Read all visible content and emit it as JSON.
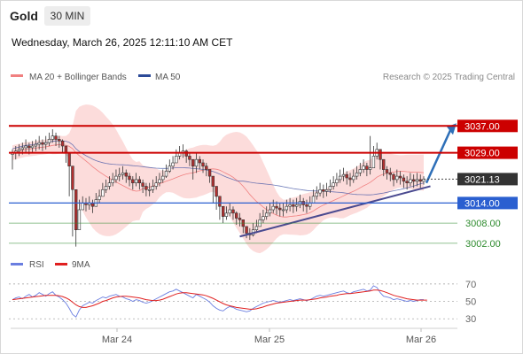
{
  "header": {
    "title": "Gold",
    "timeframe": "30 MIN"
  },
  "timestamp": "Wednesday, March 26, 2025 12:11:10 AM CET",
  "legend": {
    "bollinger": "MA 20 + Bollinger Bands",
    "ma50": "MA 50",
    "source": "Research © 2025 Trading Central"
  },
  "colors": {
    "up_candle": "#ffffff",
    "down_candle": "#b33030",
    "bollinger_fill": "#fbd0cf",
    "ma20": "#f08080",
    "ma50": "#4a5aa8",
    "resistance": "#cc0000",
    "support": "#2a5fd0",
    "target": "#2e8b2e",
    "price_badge": "#333333",
    "trend_arrow": "#2e6fb8",
    "trendline": "#4a4a90",
    "rsi": "#6a7ee0",
    "rsi_ma": "#e02020"
  },
  "chart_data": [
    {
      "type": "candlestick",
      "instrument": "Gold",
      "timeframe": "30 MIN",
      "x_ticks": [
        "Mar 24",
        "Mar 25",
        "Mar 26"
      ],
      "ylim": [
        2998,
        3045
      ],
      "grid": false,
      "legend_position": "top-left",
      "levels": [
        {
          "price": 3037.0,
          "label": "3037.00",
          "kind": "resistance"
        },
        {
          "price": 3029.0,
          "label": "3029.00",
          "kind": "resistance"
        },
        {
          "price": 3021.13,
          "label": "3021.13",
          "kind": "current"
        },
        {
          "price": 3014.0,
          "label": "3014.00",
          "kind": "support"
        },
        {
          "price": 3008.0,
          "label": "3008.00",
          "kind": "target"
        },
        {
          "price": 3002.0,
          "label": "3002.00",
          "kind": "target"
        }
      ],
      "close": [
        3029,
        3029.5,
        3030,
        3030.5,
        3031,
        3030.5,
        3031,
        3031.5,
        3032,
        3031.5,
        3032,
        3033,
        3034,
        3033,
        3032.5,
        3031,
        3029,
        3025,
        3018,
        3006,
        3012,
        3014,
        3013.5,
        3014,
        3013,
        3015,
        3016,
        3018,
        3019,
        3020,
        3021,
        3022,
        3022.5,
        3023,
        3022,
        3021,
        3020,
        3021,
        3020,
        3019,
        3018,
        3018,
        3019,
        3020,
        3021,
        3022,
        3023.5,
        3025,
        3026,
        3028,
        3029,
        3029.5,
        3028,
        3027,
        3025,
        3027,
        3026,
        3025,
        3024,
        3022,
        3019,
        3016,
        3013,
        3010,
        3011,
        3012,
        3011,
        3009.5,
        3009,
        3007,
        3005,
        3004.5,
        3006,
        3007,
        3009,
        3010,
        3011,
        3012,
        3013,
        3012.5,
        3012,
        3012,
        3013,
        3013.5,
        3013,
        3013.5,
        3014.5,
        3013.5,
        3013,
        3014,
        3016,
        3017,
        3018,
        3017.5,
        3018,
        3019,
        3020,
        3021,
        3022,
        3022.5,
        3021.5,
        3021,
        3022,
        3023,
        3024,
        3025,
        3024,
        3024.5,
        3028,
        3030,
        3027,
        3024,
        3023,
        3022.5,
        3021,
        3022,
        3021.5,
        3020.5,
        3020,
        3021,
        3020.5,
        3021,
        3020.5,
        3021.13
      ],
      "high": [
        3030,
        3031,
        3031.5,
        3032,
        3033,
        3032,
        3032.5,
        3033,
        3034,
        3033,
        3034,
        3035,
        3036,
        3035,
        3034,
        3033,
        3031,
        3027,
        3021,
        3013,
        3015,
        3016,
        3015.5,
        3016,
        3015,
        3017,
        3018,
        3020,
        3021,
        3022,
        3023,
        3024,
        3024.5,
        3025,
        3024,
        3023,
        3022,
        3023,
        3022,
        3021,
        3020,
        3020,
        3021,
        3022,
        3023,
        3024,
        3025.5,
        3027,
        3028,
        3030,
        3031,
        3031.5,
        3030,
        3029,
        3027,
        3029,
        3028,
        3027,
        3026,
        3024,
        3021,
        3018,
        3015,
        3012,
        3013,
        3014,
        3013,
        3011.5,
        3011,
        3009,
        3007,
        3006.5,
        3008,
        3009,
        3011,
        3012,
        3013,
        3014,
        3015,
        3014.5,
        3014,
        3014,
        3015,
        3015.5,
        3015,
        3015.5,
        3016.5,
        3015.5,
        3015,
        3016,
        3018,
        3019,
        3020,
        3019.5,
        3020,
        3021,
        3022,
        3023,
        3024,
        3024.5,
        3023.5,
        3023,
        3024,
        3025,
        3026,
        3027,
        3026,
        3034,
        3031,
        3032,
        3029,
        3026,
        3025,
        3024.5,
        3023,
        3024,
        3023.5,
        3022.5,
        3022,
        3023,
        3022.5,
        3023,
        3022.5,
        3022
      ],
      "low": [
        3024,
        3027,
        3028,
        3028.5,
        3029,
        3028.5,
        3029,
        3029.5,
        3030,
        3029.5,
        3030,
        3031,
        3032,
        3031,
        3030.5,
        3029,
        3026,
        3016,
        3004,
        3001,
        3008,
        3012,
        3011.5,
        3012,
        3011,
        3013,
        3014,
        3016,
        3017,
        3018,
        3019,
        3020,
        3020.5,
        3021,
        3020,
        3019,
        3018,
        3019,
        3018,
        3017,
        3016,
        3016,
        3017,
        3018,
        3019,
        3020,
        3021.5,
        3023,
        3024,
        3026,
        3027,
        3027.5,
        3026,
        3025,
        3021,
        3023,
        3024,
        3023,
        3022,
        3020,
        3014,
        3012,
        3009,
        3008,
        3009,
        3010,
        3009,
        3007.5,
        3007,
        3005,
        3003.5,
        3003,
        3004,
        3005,
        3007,
        3008,
        3009,
        3010,
        3011,
        3010.5,
        3010,
        3010,
        3011,
        3011.5,
        3011,
        3011.5,
        3012.5,
        3011.5,
        3011,
        3012,
        3014,
        3015,
        3016,
        3015.5,
        3016,
        3017,
        3018,
        3019,
        3020,
        3020.5,
        3019.5,
        3019,
        3020,
        3021,
        3022,
        3023,
        3022,
        3022.5,
        3025,
        3027,
        3024,
        3022,
        3021,
        3020.5,
        3019,
        3020,
        3019.5,
        3018.5,
        3018,
        3019,
        3018.5,
        3019,
        3018.5,
        3019.5
      ],
      "bollinger_upper_note": "MA 20 + Bollinger Bands (shaded)",
      "ma50_note": "MA 50 (blue line)",
      "trendline": {
        "from_index": 68,
        "from_price": 3004,
        "to_index": 125,
        "to_price": 3019
      },
      "forecast_arrow": {
        "from_price": 3020,
        "to_price": 3037
      }
    },
    {
      "type": "line",
      "title": "RSI",
      "series": [
        {
          "name": "RSI"
        },
        {
          "name": "9MA"
        }
      ],
      "y_ticks": [
        70,
        50,
        30
      ],
      "ylim": [
        20,
        75
      ],
      "rsi": [
        52,
        54,
        55,
        53,
        56,
        58,
        55,
        57,
        60,
        58,
        56,
        59,
        61,
        57,
        55,
        52,
        48,
        42,
        35,
        32,
        40,
        45,
        47,
        49,
        48,
        51,
        53,
        55,
        54,
        56,
        57,
        58,
        56,
        55,
        53,
        52,
        50,
        52,
        51,
        49,
        48,
        49,
        51,
        53,
        55,
        57,
        59,
        61,
        62,
        64,
        62,
        60,
        58,
        56,
        54,
        58,
        56,
        54,
        52,
        49,
        45,
        42,
        40,
        39,
        42,
        44,
        43,
        41,
        40,
        39,
        38,
        39,
        42,
        44,
        46,
        48,
        49,
        50,
        51,
        50,
        49,
        50,
        51,
        52,
        51,
        52,
        53,
        52,
        51,
        52,
        54,
        56,
        57,
        56,
        57,
        58,
        59,
        60,
        61,
        62,
        60,
        59,
        61,
        62,
        63,
        64,
        62,
        63,
        68,
        66,
        60,
        56,
        55,
        54,
        52,
        53,
        52,
        51,
        50,
        51,
        50,
        51,
        52,
        52
      ],
      "rsi_ma": [
        52,
        52.5,
        53,
        53.5,
        54,
        54.5,
        55,
        55.5,
        56,
        56.5,
        57,
        57,
        57,
        57,
        56.5,
        55.5,
        54,
        52,
        49,
        46,
        44,
        43,
        43,
        44,
        45,
        46.5,
        48,
        50,
        51,
        52.5,
        54,
        55,
        55.5,
        56,
        56,
        55.5,
        55,
        54.5,
        54,
        53,
        52,
        51.5,
        51,
        51,
        51.5,
        52.5,
        54,
        55.5,
        57,
        58.5,
        59.5,
        60,
        60,
        59.5,
        59,
        58.5,
        58,
        57.5,
        56.5,
        55,
        53.5,
        51.5,
        49.5,
        47.5,
        46,
        45,
        44,
        43,
        42.5,
        42,
        41.5,
        41,
        41,
        41.5,
        42.5,
        43.5,
        45,
        46,
        47,
        48,
        48.5,
        49,
        49.5,
        50,
        50.5,
        51,
        51.5,
        51.5,
        51.5,
        52,
        52.5,
        53,
        54,
        54.5,
        55,
        56,
        56.5,
        57,
        58,
        58.5,
        59,
        59,
        59.5,
        60,
        60.5,
        61,
        61.5,
        62,
        63,
        63,
        62.5,
        61.5,
        60,
        58.5,
        57,
        56,
        55,
        54,
        53,
        52.5,
        52,
        51.5,
        51.5,
        51.5,
        51.5
      ]
    }
  ]
}
